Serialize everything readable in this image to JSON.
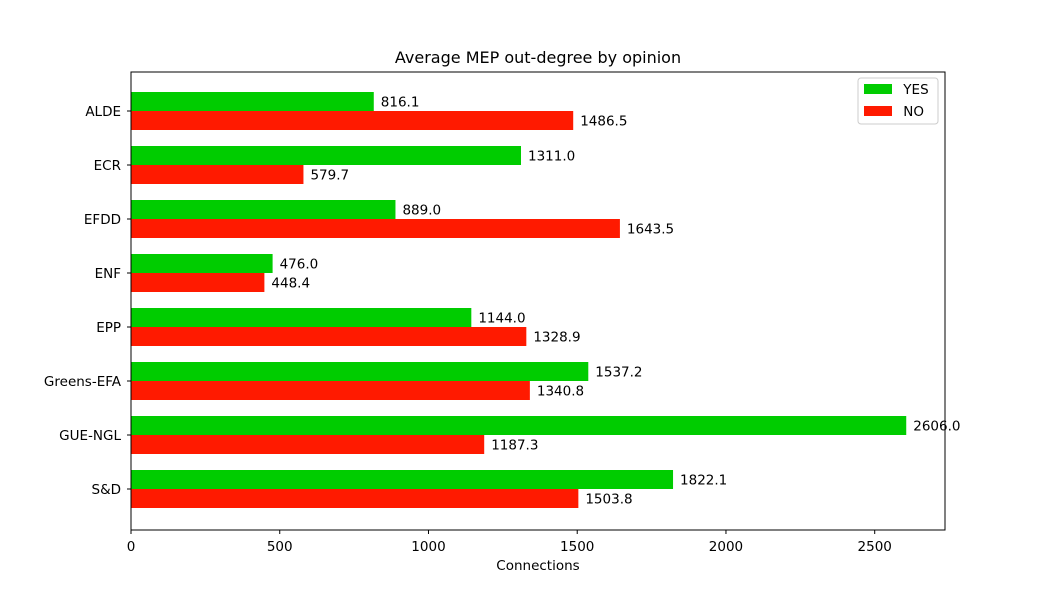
{
  "chart_data": {
    "type": "bar",
    "orientation": "horizontal",
    "title": "Average MEP out-degree by opinion",
    "xlabel": "Connections",
    "ylabel": "",
    "categories": [
      "ALDE",
      "ECR",
      "EFDD",
      "ENF",
      "EPP",
      "Greens-EFA",
      "GUE-NGL",
      "S&D"
    ],
    "series": [
      {
        "name": "YES",
        "color": "#00cc00",
        "values": [
          816.1,
          1311.0,
          889.0,
          476.0,
          1144.0,
          1537.2,
          2606.0,
          1822.1
        ],
        "labels": [
          "816.1",
          "1311.0",
          "889.0",
          "476.0",
          "1144.0",
          "1537.2",
          "2606.0",
          "1822.1"
        ]
      },
      {
        "name": "NO",
        "color": "#ff1a00",
        "values": [
          1486.5,
          579.7,
          1643.5,
          448.4,
          1328.9,
          1340.8,
          1187.3,
          1503.8
        ],
        "labels": [
          "1486.5",
          "579.7",
          "1643.5",
          "448.4",
          "1328.9",
          "1340.8",
          "1187.3",
          "1503.8"
        ]
      }
    ],
    "xlim": [
      0,
      2736.3
    ],
    "xticks": [
      0,
      500,
      1000,
      1500,
      2000,
      2500
    ],
    "xtick_labels": [
      "0",
      "500",
      "1000",
      "1500",
      "2000",
      "2500"
    ],
    "grid": false,
    "legend_position": "top-right",
    "legend_entries": [
      " YES",
      " NO"
    ]
  }
}
